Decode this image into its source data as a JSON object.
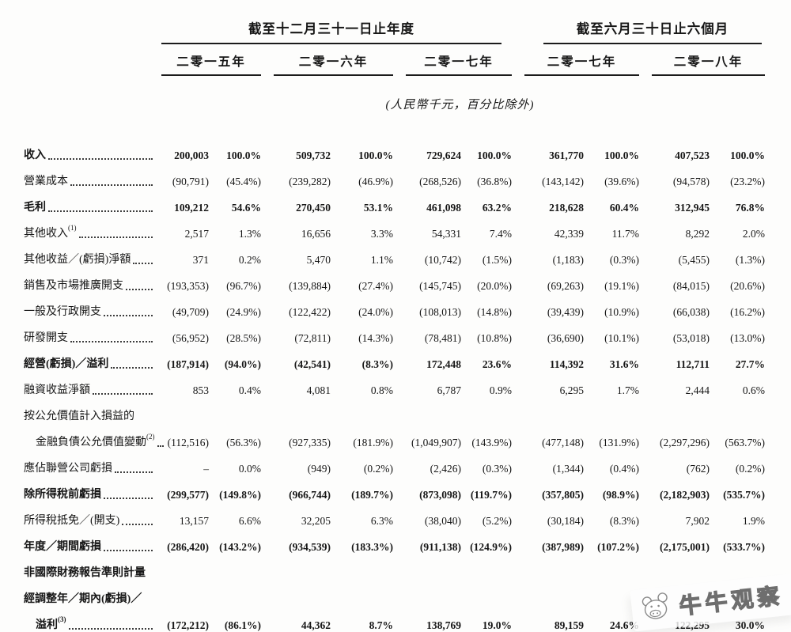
{
  "header": {
    "group1": "截至十二月三十一日止年度",
    "group2": "截至六月三十日止六個月",
    "years": [
      "二零一五年",
      "二零一六年",
      "二零一七年",
      "二零一七年",
      "二零一八年"
    ],
    "unit_note": "(人民幣千元，百分比除外)"
  },
  "table": {
    "rows": [
      {
        "label": "收入",
        "sup": "",
        "bold": true,
        "indent": false,
        "leader": true,
        "values": [
          "200,003",
          "100.0%",
          "509,732",
          "100.0%",
          "729,624",
          "100.0%",
          "361,770",
          "100.0%",
          "407,523",
          "100.0%"
        ]
      },
      {
        "label": "營業成本",
        "sup": "",
        "bold": false,
        "indent": false,
        "leader": true,
        "values": [
          "(90,791)",
          "(45.4%)",
          "(239,282)",
          "(46.9%)",
          "(268,526)",
          "(36.8%)",
          "(143,142)",
          "(39.6%)",
          "(94,578)",
          "(23.2%)"
        ]
      },
      {
        "label": "毛利",
        "sup": "",
        "bold": true,
        "indent": false,
        "leader": true,
        "values": [
          "109,212",
          "54.6%",
          "270,450",
          "53.1%",
          "461,098",
          "63.2%",
          "218,628",
          "60.4%",
          "312,945",
          "76.8%"
        ]
      },
      {
        "label": "其他收入",
        "sup": "(1)",
        "bold": false,
        "indent": false,
        "leader": true,
        "values": [
          "2,517",
          "1.3%",
          "16,656",
          "3.3%",
          "54,331",
          "7.4%",
          "42,339",
          "11.7%",
          "8,292",
          "2.0%"
        ]
      },
      {
        "label": "其他收益／(虧損)淨額",
        "sup": "",
        "bold": false,
        "indent": false,
        "leader": true,
        "values": [
          "371",
          "0.2%",
          "5,470",
          "1.1%",
          "(10,742)",
          "(1.5%)",
          "(1,183)",
          "(0.3%)",
          "(5,455)",
          "(1.3%)"
        ]
      },
      {
        "label": "銷售及市場推廣開支",
        "sup": "",
        "bold": false,
        "indent": false,
        "leader": true,
        "values": [
          "(193,353)",
          "(96.7%)",
          "(139,884)",
          "(27.4%)",
          "(145,745)",
          "(20.0%)",
          "(69,263)",
          "(19.1%)",
          "(84,015)",
          "(20.6%)"
        ]
      },
      {
        "label": "一般及行政開支",
        "sup": "",
        "bold": false,
        "indent": false,
        "leader": true,
        "values": [
          "(49,709)",
          "(24.9%)",
          "(122,422)",
          "(24.0%)",
          "(108,013)",
          "(14.8%)",
          "(39,439)",
          "(10.9%)",
          "(66,038)",
          "(16.2%)"
        ]
      },
      {
        "label": "研發開支",
        "sup": "",
        "bold": false,
        "indent": false,
        "leader": true,
        "values": [
          "(56,952)",
          "(28.5%)",
          "(72,811)",
          "(14.3%)",
          "(78,481)",
          "(10.8%)",
          "(36,690)",
          "(10.1%)",
          "(53,018)",
          "(13.0%)"
        ]
      },
      {
        "label": "經營(虧損)／溢利",
        "sup": "",
        "bold": true,
        "indent": false,
        "leader": true,
        "values": [
          "(187,914)",
          "(94.0%)",
          "(42,541)",
          "(8.3%)",
          "172,448",
          "23.6%",
          "114,392",
          "31.6%",
          "112,711",
          "27.7%"
        ]
      },
      {
        "label": "融資收益淨額",
        "sup": "",
        "bold": false,
        "indent": false,
        "leader": true,
        "values": [
          "853",
          "0.4%",
          "4,081",
          "0.8%",
          "6,787",
          "0.9%",
          "6,295",
          "1.7%",
          "2,444",
          "0.6%"
        ]
      },
      {
        "label": "按公允價值計入損益的",
        "sup": "",
        "bold": false,
        "indent": false,
        "leader": false,
        "values": [
          "",
          "",
          "",
          "",
          "",
          "",
          "",
          "",
          "",
          ""
        ]
      },
      {
        "label": "金融負債公允價值變動",
        "sup": "(2)",
        "bold": false,
        "indent": true,
        "leader": true,
        "values": [
          "(112,516)",
          "(56.3%)",
          "(927,335)",
          "(181.9%)",
          "(1,049,907)",
          "(143.9%)",
          "(477,148)",
          "(131.9%)",
          "(2,297,296)",
          "(563.7%)"
        ]
      },
      {
        "label": "應佔聯營公司虧損",
        "sup": "",
        "bold": false,
        "indent": false,
        "leader": true,
        "values": [
          "–",
          "0.0%",
          "(949)",
          "(0.2%)",
          "(2,426)",
          "(0.3%)",
          "(1,344)",
          "(0.4%)",
          "(762)",
          "(0.2%)"
        ]
      },
      {
        "label": "除所得稅前虧損",
        "sup": "",
        "bold": true,
        "indent": false,
        "leader": true,
        "values": [
          "(299,577)",
          "(149.8%)",
          "(966,744)",
          "(189.7%)",
          "(873,098)",
          "(119.7%)",
          "(357,805)",
          "(98.9%)",
          "(2,182,903)",
          "(535.7%)"
        ]
      },
      {
        "label": "所得稅抵免／(開支)",
        "sup": "",
        "bold": false,
        "indent": false,
        "leader": true,
        "values": [
          "13,157",
          "6.6%",
          "32,205",
          "6.3%",
          "(38,040)",
          "(5.2%)",
          "(30,184)",
          "(8.3%)",
          "7,902",
          "1.9%"
        ]
      },
      {
        "label": "年度／期間虧損",
        "sup": "",
        "bold": true,
        "indent": false,
        "leader": true,
        "values": [
          "(286,420)",
          "(143.2%)",
          "(934,539)",
          "(183.3%)",
          "(911,138)",
          "(124.9%)",
          "(387,989)",
          "(107.2%)",
          "(2,175,001)",
          "(533.7%)"
        ]
      },
      {
        "label": "非國際財務報告準則計量",
        "sup": "",
        "bold": true,
        "indent": false,
        "leader": false,
        "values": [
          "",
          "",
          "",
          "",
          "",
          "",
          "",
          "",
          "",
          ""
        ]
      },
      {
        "label": "經調整年／期內(虧損)／",
        "sup": "",
        "bold": true,
        "indent": false,
        "leader": false,
        "values": [
          "",
          "",
          "",
          "",
          "",
          "",
          "",
          "",
          "",
          ""
        ]
      },
      {
        "label": "溢利",
        "sup": "(3)",
        "bold": true,
        "indent": true,
        "leader": true,
        "values": [
          "(172,212)",
          "(86.1%)",
          "44,362",
          "8.7%",
          "138,769",
          "19.0%",
          "89,159",
          "24.6%",
          "122,295",
          "30.0%"
        ]
      }
    ]
  },
  "watermark": {
    "text": "牛牛观察",
    "icon": "cow-logo-icon",
    "text_color": "#6e6e6e"
  },
  "colors": {
    "ink": "#161616",
    "rule": "#1b1b1b",
    "page_background": "#fdfdfc"
  }
}
